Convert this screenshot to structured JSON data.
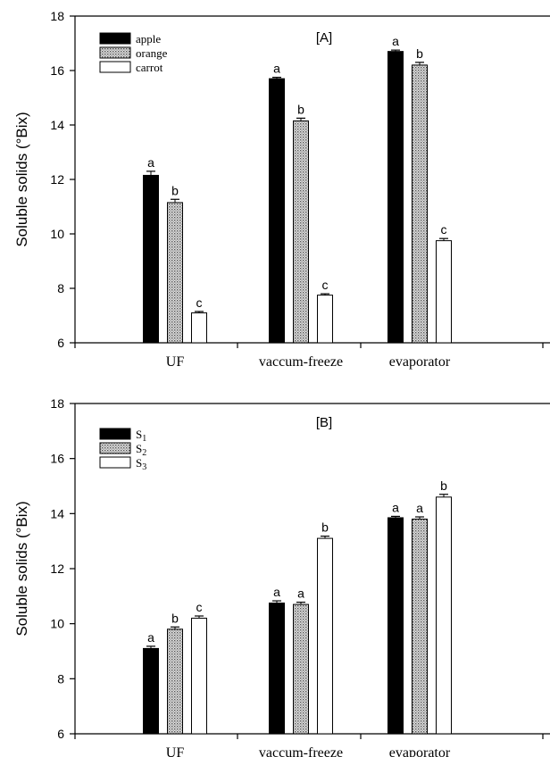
{
  "chart_data": [
    {
      "type": "bar",
      "panel_label": "[A]",
      "ylabel": "Soluble solids (°Bix)",
      "xlabel": "",
      "ylim": [
        6,
        18
      ],
      "yticks": [
        6,
        8,
        10,
        12,
        14,
        16,
        18
      ],
      "categories": [
        "UF",
        "vaccum-freeze",
        "evaporator"
      ],
      "legend_position": "top-left",
      "grid": false,
      "series": [
        {
          "name": "apple",
          "pattern": "solid",
          "color": "#000000",
          "values": [
            12.15,
            15.7,
            16.7
          ],
          "errors": [
            0.15,
            0.05,
            0.05
          ],
          "labels": [
            "a",
            "a",
            "a"
          ]
        },
        {
          "name": "orange",
          "pattern": "dotted",
          "color": "#b8b8b8",
          "values": [
            11.15,
            14.15,
            16.2
          ],
          "errors": [
            0.12,
            0.1,
            0.1
          ],
          "labels": [
            "b",
            "b",
            "b"
          ]
        },
        {
          "name": "carrot",
          "pattern": "open",
          "color": "#ffffff",
          "values": [
            7.1,
            7.75,
            9.75
          ],
          "errors": [
            0.05,
            0.05,
            0.08
          ],
          "labels": [
            "c",
            "c",
            "c"
          ]
        }
      ]
    },
    {
      "type": "bar",
      "panel_label": "[B]",
      "ylabel": "Soluble solids (°Bix)",
      "xlabel": "",
      "ylim": [
        6,
        18
      ],
      "yticks": [
        6,
        8,
        10,
        12,
        14,
        16,
        18
      ],
      "categories": [
        "UF",
        "vaccum-freeze",
        "evaporator"
      ],
      "legend_position": "top-left",
      "grid": false,
      "series": [
        {
          "name": "S",
          "subscript": "1",
          "pattern": "solid",
          "color": "#000000",
          "values": [
            9.1,
            10.75,
            13.85
          ],
          "errors": [
            0.08,
            0.08,
            0.05
          ],
          "labels": [
            "a",
            "a",
            "a"
          ]
        },
        {
          "name": "S",
          "subscript": "2",
          "pattern": "dotted",
          "color": "#b8b8b8",
          "values": [
            9.8,
            10.7,
            13.8
          ],
          "errors": [
            0.08,
            0.08,
            0.08
          ],
          "labels": [
            "b",
            "a",
            "a"
          ]
        },
        {
          "name": "S",
          "subscript": "3",
          "pattern": "open",
          "color": "#ffffff",
          "values": [
            10.2,
            13.1,
            14.6
          ],
          "errors": [
            0.08,
            0.08,
            0.1
          ],
          "labels": [
            "c",
            "b",
            "b"
          ]
        }
      ]
    }
  ]
}
